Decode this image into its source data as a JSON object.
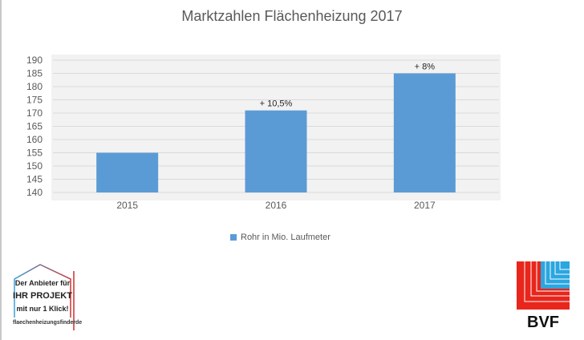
{
  "chart_data": {
    "type": "bar",
    "title": "Marktzahlen Flächenheizung 2017",
    "categories": [
      "2015",
      "2016",
      "2017"
    ],
    "series": [
      {
        "name": "Rohr in Mio. Laufmeter",
        "values": [
          155,
          171,
          185
        ],
        "color": "#5b9bd5"
      }
    ],
    "data_labels": [
      "",
      "+ 10,5%",
      "+ 8%"
    ],
    "ylim": [
      140,
      190
    ],
    "yticks": [
      140,
      145,
      150,
      155,
      160,
      165,
      170,
      175,
      180,
      185,
      190
    ],
    "grid": true,
    "plot_background": "#f2f2f2",
    "legend_position": "bottom"
  },
  "logos": {
    "left": {
      "lines": [
        "Der Anbieter für",
        "IHR PROJEKT",
        "mit nur 1 Klick!"
      ],
      "url_text": "flaechenheizungsfinder",
      "url_suffix": "de"
    },
    "right": {
      "text": "BVF"
    }
  }
}
